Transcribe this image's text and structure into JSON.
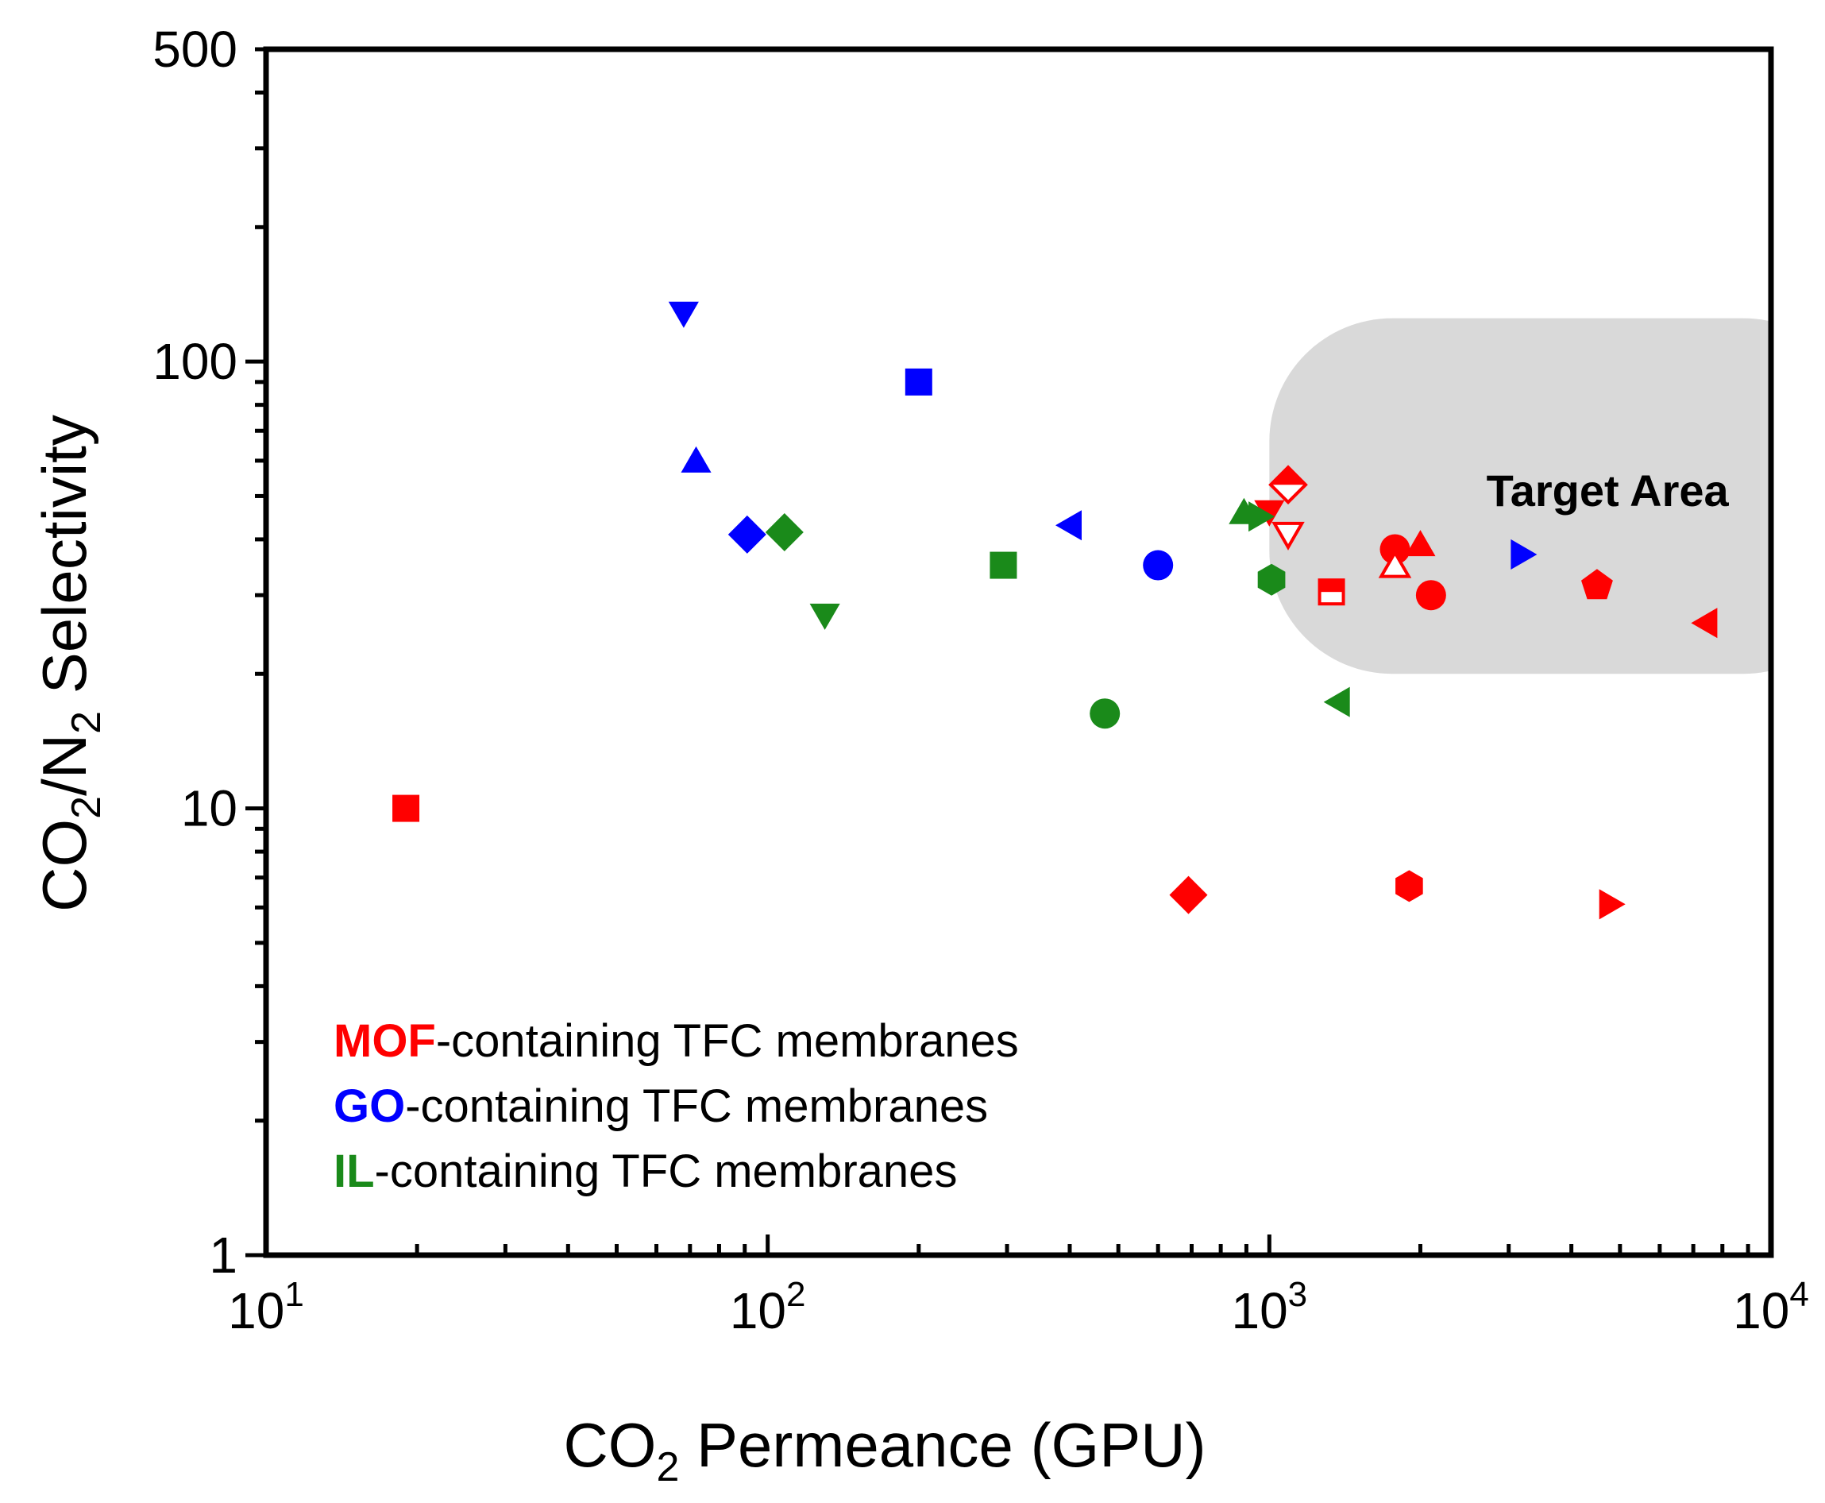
{
  "chart_data": {
    "type": "scatter",
    "xscale": "log",
    "yscale": "log",
    "xlim": [
      10,
      10000
    ],
    "ylim": [
      1,
      500
    ],
    "xlabel": {
      "base": "CO",
      "sub": "2",
      "rest": " Permeance (GPU)"
    },
    "ylabel": {
      "p1": "CO",
      "s1": "2",
      "p2": "/N",
      "s2": "2",
      "p3": " Selectivity"
    },
    "xticks": [
      {
        "value": 10,
        "base": "10",
        "exp": "1"
      },
      {
        "value": 100,
        "base": "10",
        "exp": "2"
      },
      {
        "value": 1000,
        "base": "10",
        "exp": "3"
      },
      {
        "value": 10000,
        "base": "10",
        "exp": "4"
      }
    ],
    "yticks": [
      {
        "value": 1,
        "label": "1"
      },
      {
        "value": 10,
        "label": "10"
      },
      {
        "value": 100,
        "label": "100"
      },
      {
        "value": 500,
        "label": "500"
      }
    ],
    "target_area": {
      "label": "Target Area",
      "x_range": [
        1000,
        10000
      ],
      "y_range": [
        20,
        125
      ],
      "color": "#d9d9d9"
    },
    "legend": [
      {
        "key": "MOF",
        "text": "-containing TFC membranes",
        "color": "#ff0000"
      },
      {
        "key": "GO",
        "text": "-containing TFC membranes",
        "color": "#0000ff"
      },
      {
        "key": "IL",
        "text": "-containing TFC membranes",
        "color": "#1a8a1a"
      }
    ],
    "series": [
      {
        "name": "MOF-containing TFC membranes",
        "color": "#ff0000",
        "points": [
          {
            "x": 19,
            "y": 10,
            "marker": "square"
          },
          {
            "x": 690,
            "y": 6.4,
            "marker": "diamond"
          },
          {
            "x": 1900,
            "y": 6.7,
            "marker": "hexagon"
          },
          {
            "x": 4800,
            "y": 6.1,
            "marker": "triangle-right"
          },
          {
            "x": 7400,
            "y": 26,
            "marker": "triangle-left"
          },
          {
            "x": 4500,
            "y": 31.5,
            "marker": "pentagon"
          },
          {
            "x": 2100,
            "y": 30,
            "marker": "circle"
          },
          {
            "x": 1780,
            "y": 38,
            "marker": "circle"
          },
          {
            "x": 2000,
            "y": 39,
            "marker": "triangle-up"
          },
          {
            "x": 1780,
            "y": 35,
            "marker": "triangle-up-open"
          },
          {
            "x": 1330,
            "y": 30.5,
            "marker": "square-half"
          },
          {
            "x": 1000,
            "y": 46,
            "marker": "triangle-down"
          },
          {
            "x": 1090,
            "y": 41,
            "marker": "triangle-down-open"
          },
          {
            "x": 1090,
            "y": 53,
            "marker": "diamond-half"
          }
        ]
      },
      {
        "name": "GO-containing TFC membranes",
        "color": "#0000ff",
        "points": [
          {
            "x": 68,
            "y": 128,
            "marker": "triangle-down"
          },
          {
            "x": 200,
            "y": 90,
            "marker": "square"
          },
          {
            "x": 72,
            "y": 60,
            "marker": "triangle-up"
          },
          {
            "x": 91,
            "y": 41,
            "marker": "diamond"
          },
          {
            "x": 400,
            "y": 43,
            "marker": "triangle-left"
          },
          {
            "x": 600,
            "y": 35,
            "marker": "circle"
          },
          {
            "x": 3200,
            "y": 37,
            "marker": "triangle-right"
          }
        ]
      },
      {
        "name": "IL-containing TFC membranes",
        "color": "#1a8a1a",
        "points": [
          {
            "x": 108,
            "y": 41.5,
            "marker": "diamond"
          },
          {
            "x": 130,
            "y": 27,
            "marker": "triangle-down"
          },
          {
            "x": 295,
            "y": 35,
            "marker": "square"
          },
          {
            "x": 470,
            "y": 16.3,
            "marker": "circle"
          },
          {
            "x": 890,
            "y": 46,
            "marker": "triangle-up"
          },
          {
            "x": 960,
            "y": 45,
            "marker": "triangle-right"
          },
          {
            "x": 1010,
            "y": 32.5,
            "marker": "hexagon"
          },
          {
            "x": 1370,
            "y": 17.3,
            "marker": "triangle-left"
          }
        ]
      }
    ]
  }
}
